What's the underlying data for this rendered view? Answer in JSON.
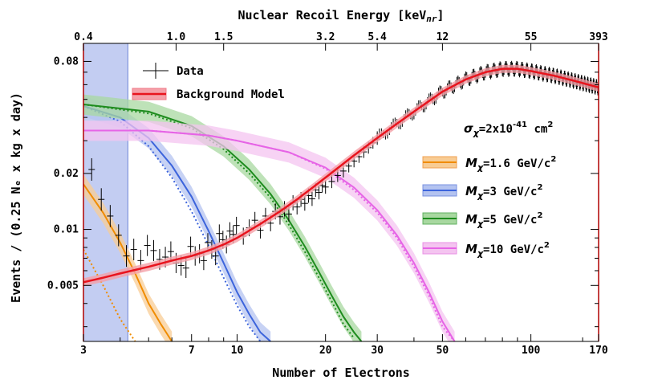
{
  "chart_data": {
    "type": "line",
    "title": "",
    "xlabel": "Number of Electrons",
    "ylabel": "Events / (0.25 Nₑ x kg x day)",
    "x2label": "Nuclear Recoil Energy [keV_nr]",
    "x2label_main": "Nuclear Recoil Energy [keV",
    "x2label_sub": "nr",
    "x2label_end": "]",
    "xscale": "log",
    "yscale": "log",
    "xlim": [
      3,
      170
    ],
    "ylim": [
      0.0025,
      0.1
    ],
    "x_ticks": [
      3,
      7,
      10,
      20,
      30,
      50,
      100,
      170
    ],
    "x_tick_labels": [
      "3",
      "7",
      "10",
      "20",
      "30",
      "50",
      "100",
      "170"
    ],
    "x2_ticks": [
      3,
      6.2,
      9,
      20,
      30,
      50,
      100,
      170
    ],
    "x2_tick_labels": [
      "0.4",
      "1.0",
      "1.5",
      "3.2",
      "5.4",
      "12",
      "55",
      "393"
    ],
    "y_ticks": [
      0.005,
      0.01,
      0.02,
      0.08
    ],
    "y_tick_labels": [
      "0.005",
      "0.01",
      "0.02",
      "0.08"
    ],
    "excluded_region": [
      3,
      4.25
    ],
    "cross_section_label": "σχ=2x10⁻⁴¹ cm²",
    "cross_section_parts": {
      "sym": "σ",
      "sub": "χ",
      "text": "=2x10",
      "exp": "-41",
      "unit": " cm",
      "unit_exp": "2"
    },
    "legend": [
      {
        "key": "data",
        "label": "Data",
        "color": "#000000"
      },
      {
        "key": "background",
        "label": "Background Model",
        "color": "#e8141e"
      },
      {
        "key": "m16",
        "sym": "M",
        "sub": "χ",
        "label": "=1.6 GeV/c",
        "exp": "2",
        "color": "#f08c00"
      },
      {
        "key": "m3",
        "sym": "M",
        "sub": "χ",
        "label": "=3 GeV/c",
        "exp": "2",
        "color": "#3c64dc"
      },
      {
        "key": "m5",
        "sym": "M",
        "sub": "χ",
        "label": "=5 GeV/c",
        "exp": "2",
        "color": "#1e8c1e"
      },
      {
        "key": "m10",
        "sym": "M",
        "sub": "χ",
        "label": "=10 GeV/c",
        "exp": "2",
        "color": "#e664e6"
      }
    ],
    "background_model": {
      "x": [
        3,
        3.5,
        4,
        5,
        6,
        7,
        8,
        9,
        10,
        12,
        14,
        16,
        18,
        20,
        25,
        30,
        35,
        40,
        50,
        60,
        70,
        80,
        90,
        100,
        120,
        140,
        170
      ],
      "y": [
        0.0052,
        0.0055,
        0.0058,
        0.0063,
        0.0068,
        0.0072,
        0.0077,
        0.0083,
        0.009,
        0.0107,
        0.0125,
        0.0145,
        0.0167,
        0.019,
        0.025,
        0.031,
        0.037,
        0.043,
        0.055,
        0.064,
        0.07,
        0.073,
        0.073,
        0.071,
        0.067,
        0.063,
        0.058
      ]
    },
    "data_points": {
      "x": [
        3.2,
        3.45,
        3.7,
        3.95,
        4.2,
        4.45,
        4.7,
        4.95,
        5.2,
        5.45,
        5.7,
        5.95,
        6.2,
        6.45,
        6.7,
        6.95,
        7.2,
        7.45,
        7.7,
        7.95,
        8.2,
        8.45,
        8.7,
        8.95,
        9.2,
        9.45,
        9.7,
        9.95,
        10.5,
        11,
        11.5,
        12,
        12.5,
        13,
        13.5,
        14,
        14.5,
        15,
        15.5,
        16,
        16.5,
        17,
        17.5,
        18,
        18.5,
        19,
        19.5,
        20,
        21,
        22,
        23,
        24,
        25,
        26,
        27,
        28,
        29,
        30
      ],
      "y": [
        0.021,
        0.0145,
        0.0118,
        0.0093,
        0.0072,
        0.0078,
        0.0068,
        0.0082,
        0.0077,
        0.0069,
        0.0071,
        0.0076,
        0.0066,
        0.0064,
        0.0062,
        0.0081,
        0.0072,
        0.0074,
        0.0068,
        0.0085,
        0.0078,
        0.0072,
        0.0095,
        0.0088,
        0.0083,
        0.0098,
        0.0094,
        0.0105,
        0.0092,
        0.0102,
        0.0112,
        0.0099,
        0.0118,
        0.0108,
        0.0125,
        0.0117,
        0.0129,
        0.0121,
        0.0139,
        0.0132,
        0.0145,
        0.0138,
        0.0152,
        0.0146,
        0.0163,
        0.0158,
        0.0172,
        0.0169,
        0.0181,
        0.0195,
        0.0206,
        0.0219,
        0.0233,
        0.0246,
        0.0261,
        0.0275,
        0.0292,
        0.0306
      ]
    },
    "series": [
      {
        "name": "Mχ=1.6 GeV/c²",
        "color": "#f08c00",
        "x": [
          3,
          3.5,
          4,
          4.5,
          5,
          5.5,
          6
        ],
        "y": [
          0.0175,
          0.0123,
          0.0085,
          0.0058,
          0.004,
          0.0031,
          0.0025
        ],
        "dotted_y": [
          0.0078,
          0.005,
          0.0033,
          0.0025,
          null,
          null,
          null
        ]
      },
      {
        "name": "Mχ=3 GeV/c²",
        "color": "#3c64dc",
        "x": [
          3,
          4,
          5,
          6,
          7,
          8,
          9,
          10,
          11,
          12,
          13
        ],
        "y": [
          0.046,
          0.04,
          0.031,
          0.022,
          0.015,
          0.0098,
          0.0066,
          0.0046,
          0.0035,
          0.0028,
          0.0025
        ],
        "dotted_y": [
          0.046,
          0.038,
          0.028,
          0.019,
          0.0125,
          0.0082,
          0.0055,
          0.0039,
          0.003,
          0.0025,
          null
        ]
      },
      {
        "name": "Mχ=5 GeV/c²",
        "color": "#1e8c1e",
        "x": [
          3,
          5,
          7,
          9,
          11,
          13,
          15,
          17,
          19,
          21,
          23,
          25,
          26.5
        ],
        "y": [
          0.047,
          0.043,
          0.036,
          0.028,
          0.021,
          0.0155,
          0.0112,
          0.0081,
          0.0059,
          0.0044,
          0.0034,
          0.0028,
          0.0025
        ],
        "dotted_y": [
          0.047,
          0.042,
          0.035,
          0.027,
          0.02,
          0.0148,
          0.0106,
          0.0076,
          0.0055,
          0.0041,
          0.0031,
          0.0026,
          null
        ]
      },
      {
        "name": "Mχ=10 GeV/c²",
        "color": "#e664e6",
        "x": [
          3,
          5,
          8,
          10,
          15,
          20,
          25,
          30,
          35,
          40,
          45,
          50,
          55
        ],
        "y": [
          0.034,
          0.034,
          0.032,
          0.03,
          0.026,
          0.0215,
          0.0168,
          0.0127,
          0.0093,
          0.0066,
          0.0046,
          0.0032,
          0.0025
        ],
        "dotted_y": [
          0.034,
          0.034,
          0.032,
          0.03,
          0.026,
          0.0212,
          0.0163,
          0.0123,
          0.009,
          0.0063,
          0.0044,
          0.003,
          0.0025
        ]
      }
    ]
  }
}
